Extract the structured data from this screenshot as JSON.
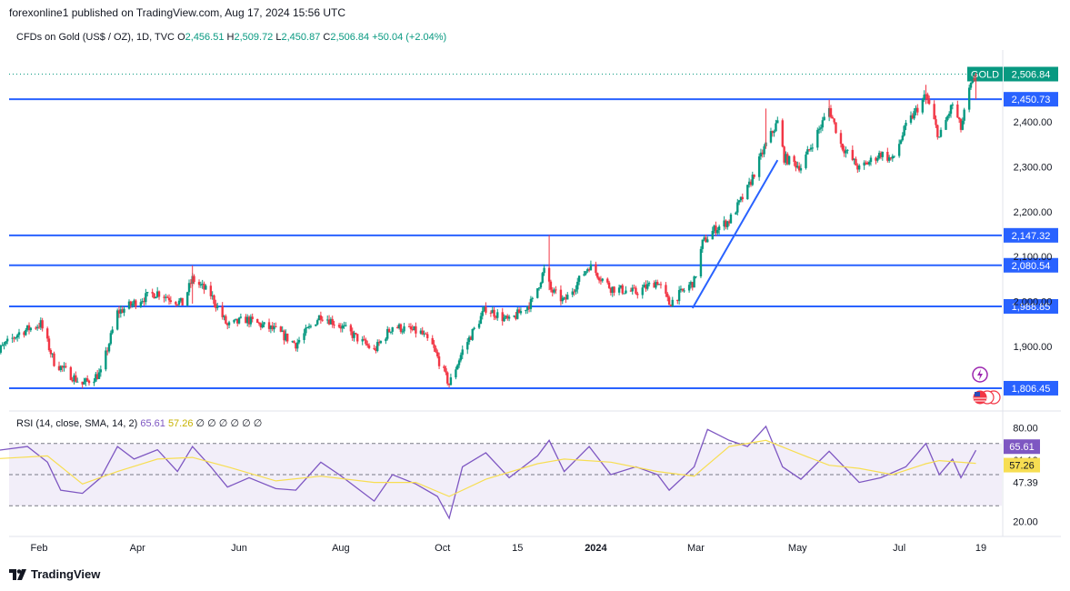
{
  "header": {
    "published": "forexonline1 published on TradingView.com, Aug 17, 2024 15:56 UTC"
  },
  "legend": {
    "symbol": "CFDs on Gold (US$ / OZ), 1D, TVC",
    "o_label": "O",
    "o": "2,456.51",
    "h_label": "H",
    "h": "2,509.72",
    "l_label": "L",
    "l": "2,450.87",
    "c_label": "C",
    "c": "2,506.84",
    "change": "+50.04 (+2.04%)"
  },
  "rsi_legend": {
    "label": "RSI (14, close, SMA, 14, 2)",
    "rsi": "65.61",
    "sma": "57.26",
    "empty": "∅ ∅ ∅ ∅ ∅ ∅"
  },
  "footer": {
    "brand": "TradingView"
  },
  "colors": {
    "up": "#089981",
    "down": "#f23645",
    "level_line": "#2962ff",
    "rsi_line": "#7e57c2",
    "rsi_sma": "#f7de52"
  },
  "icons": [
    "flash-icon",
    "us-flag-icon",
    "tradingview-logo-icon"
  ],
  "chart_data": [
    {
      "type": "candlestick",
      "title": "CFDs on Gold (US$ / OZ), 1D, TVC",
      "x_ticks": [
        "Feb",
        "Apr",
        "Jun",
        "Aug",
        "Oct",
        "15",
        "2024",
        "Mar",
        "May",
        "Jul",
        "19"
      ],
      "y_ticks": [
        "1,900.00",
        "2,000.00",
        "2,100.00",
        "2,200.00",
        "2,300.00",
        "2,400.00"
      ],
      "ylim": [
        1780,
        2520
      ],
      "price_tags": [
        {
          "label": "GOLD",
          "value": 2506.84,
          "text": "2,506.84",
          "kind": "last"
        },
        {
          "value": 2450.73,
          "text": "2,450.73",
          "kind": "level"
        },
        {
          "value": 2147.32,
          "text": "2,147.32",
          "kind": "level"
        },
        {
          "value": 2080.54,
          "text": "2,080.54",
          "kind": "level"
        },
        {
          "value": 1988.85,
          "text": "1,988.85",
          "kind": "level"
        },
        {
          "value": 1806.45,
          "text": "1,806.45",
          "kind": "level"
        }
      ],
      "trendline": {
        "from": [
          "2024-02-28",
          1985
        ],
        "to": [
          "2024-04-19",
          2315
        ]
      },
      "close_path": [
        [
          "2023-01-03",
          1875
        ],
        [
          "2023-01-20",
          1930
        ],
        [
          "2023-02-02",
          1950
        ],
        [
          "2023-02-10",
          1865
        ],
        [
          "2023-02-27",
          1815
        ],
        [
          "2023-03-10",
          1840
        ],
        [
          "2023-03-20",
          1975
        ],
        [
          "2023-04-03",
          2005
        ],
        [
          "2023-04-13",
          2020
        ],
        [
          "2023-04-28",
          1995
        ],
        [
          "2023-05-04",
          2050
        ],
        [
          "2023-05-15",
          2015
        ],
        [
          "2023-05-25",
          1945
        ],
        [
          "2023-06-05",
          1960
        ],
        [
          "2023-06-23",
          1935
        ],
        [
          "2023-07-05",
          1905
        ],
        [
          "2023-07-20",
          1970
        ],
        [
          "2023-08-01",
          1945
        ],
        [
          "2023-08-21",
          1890
        ],
        [
          "2023-09-01",
          1945
        ],
        [
          "2023-09-18",
          1930
        ],
        [
          "2023-09-25",
          1900
        ],
        [
          "2023-10-05",
          1815
        ],
        [
          "2023-10-13",
          1890
        ],
        [
          "2023-10-27",
          1985
        ],
        [
          "2023-11-10",
          1955
        ],
        [
          "2023-11-24",
          2000
        ],
        [
          "2023-12-01",
          2070
        ],
        [
          "2023-12-05",
          2025
        ],
        [
          "2023-12-13",
          2000
        ],
        [
          "2023-12-28",
          2080
        ],
        [
          "2024-01-10",
          2030
        ],
        [
          "2024-01-25",
          2020
        ],
        [
          "2024-02-07",
          2045
        ],
        [
          "2024-02-14",
          1995
        ],
        [
          "2024-02-29",
          2045
        ],
        [
          "2024-03-05",
          2130
        ],
        [
          "2024-03-12",
          2160
        ],
        [
          "2024-03-21",
          2180
        ],
        [
          "2024-04-01",
          2250
        ],
        [
          "2024-04-12",
          2350
        ],
        [
          "2024-04-19",
          2400
        ],
        [
          "2024-04-23",
          2320
        ],
        [
          "2024-05-03",
          2300
        ],
        [
          "2024-05-20",
          2430
        ],
        [
          "2024-05-27",
          2350
        ],
        [
          "2024-06-07",
          2295
        ],
        [
          "2024-06-20",
          2330
        ],
        [
          "2024-06-27",
          2315
        ],
        [
          "2024-07-05",
          2390
        ],
        [
          "2024-07-17",
          2460
        ],
        [
          "2024-07-25",
          2365
        ],
        [
          "2024-08-02",
          2440
        ],
        [
          "2024-08-07",
          2385
        ],
        [
          "2024-08-12",
          2470
        ],
        [
          "2024-08-16",
          2506.84
        ]
      ],
      "spikes": [
        [
          "2023-12-04",
          2148,
          2025
        ],
        [
          "2023-05-04",
          2080,
          1995
        ],
        [
          "2024-04-12",
          2430,
          2340
        ],
        [
          "2024-05-20",
          2450,
          2410
        ],
        [
          "2024-07-17",
          2483,
          2440
        ],
        [
          "2024-08-16",
          2509.72,
          2450.87
        ]
      ]
    },
    {
      "type": "line",
      "title": "RSI (14, close, SMA, 14, 2)",
      "y_ticks": [
        "80.00",
        "20.00"
      ],
      "ylim": [
        15,
        85
      ],
      "bands": [
        30,
        50,
        70
      ],
      "tags": [
        {
          "value": 65.61,
          "text": "65.61",
          "kind": "rsi"
        },
        {
          "value": 61.12,
          "text": "61.12",
          "kind": "plain"
        },
        {
          "value": 57.26,
          "text": "57.26",
          "kind": "sma"
        },
        {
          "value": 47.39,
          "text": "47.39",
          "kind": "plain"
        }
      ],
      "series": [
        {
          "name": "RSI",
          "points": [
            [
              "2023-01-03",
              65
            ],
            [
              "2023-01-25",
              68
            ],
            [
              "2023-02-06",
              58
            ],
            [
              "2023-02-14",
              40
            ],
            [
              "2023-02-27",
              38
            ],
            [
              "2023-03-10",
              48
            ],
            [
              "2023-03-20",
              68
            ],
            [
              "2023-03-30",
              60
            ],
            [
              "2023-04-13",
              66
            ],
            [
              "2023-04-25",
              52
            ],
            [
              "2023-05-04",
              68
            ],
            [
              "2023-05-15",
              55
            ],
            [
              "2023-05-25",
              42
            ],
            [
              "2023-06-07",
              48
            ],
            [
              "2023-06-23",
              41
            ],
            [
              "2023-07-05",
              40
            ],
            [
              "2023-07-20",
              58
            ],
            [
              "2023-07-31",
              50
            ],
            [
              "2023-08-21",
              33
            ],
            [
              "2023-09-01",
              50
            ],
            [
              "2023-09-15",
              44
            ],
            [
              "2023-09-28",
              36
            ],
            [
              "2023-10-05",
              22
            ],
            [
              "2023-10-13",
              55
            ],
            [
              "2023-10-27",
              64
            ],
            [
              "2023-11-10",
              48
            ],
            [
              "2023-11-27",
              62
            ],
            [
              "2023-12-04",
              72
            ],
            [
              "2023-12-13",
              52
            ],
            [
              "2023-12-28",
              68
            ],
            [
              "2024-01-10",
              50
            ],
            [
              "2024-01-25",
              55
            ],
            [
              "2024-02-07",
              50
            ],
            [
              "2024-02-14",
              40
            ],
            [
              "2024-02-29",
              55
            ],
            [
              "2024-03-08",
              79
            ],
            [
              "2024-03-21",
              72
            ],
            [
              "2024-04-01",
              68
            ],
            [
              "2024-04-12",
              81
            ],
            [
              "2024-04-22",
              55
            ],
            [
              "2024-05-03",
              47
            ],
            [
              "2024-05-20",
              65
            ],
            [
              "2024-06-07",
              45
            ],
            [
              "2024-06-20",
              48
            ],
            [
              "2024-07-05",
              55
            ],
            [
              "2024-07-17",
              70
            ],
            [
              "2024-07-25",
              50
            ],
            [
              "2024-08-02",
              60
            ],
            [
              "2024-08-07",
              48
            ],
            [
              "2024-08-16",
              65.61
            ]
          ]
        },
        {
          "name": "RSI-based MA",
          "points": [
            [
              "2023-01-03",
              60
            ],
            [
              "2023-02-06",
              62
            ],
            [
              "2023-02-27",
              44
            ],
            [
              "2023-03-20",
              52
            ],
            [
              "2023-04-13",
              60
            ],
            [
              "2023-05-04",
              61
            ],
            [
              "2023-05-25",
              55
            ],
            [
              "2023-06-23",
              46
            ],
            [
              "2023-07-20",
              49
            ],
            [
              "2023-08-21",
              45
            ],
            [
              "2023-09-15",
              45
            ],
            [
              "2023-10-05",
              36
            ],
            [
              "2023-10-27",
              47
            ],
            [
              "2023-11-27",
              57
            ],
            [
              "2023-12-13",
              60
            ],
            [
              "2024-01-10",
              58
            ],
            [
              "2024-02-07",
              52
            ],
            [
              "2024-02-29",
              49
            ],
            [
              "2024-03-21",
              68
            ],
            [
              "2024-04-12",
              72
            ],
            [
              "2024-05-03",
              63
            ],
            [
              "2024-05-20",
              56
            ],
            [
              "2024-06-07",
              54
            ],
            [
              "2024-06-27",
              50
            ],
            [
              "2024-07-17",
              57
            ],
            [
              "2024-07-25",
              59
            ],
            [
              "2024-08-16",
              57.26
            ]
          ]
        }
      ]
    }
  ]
}
